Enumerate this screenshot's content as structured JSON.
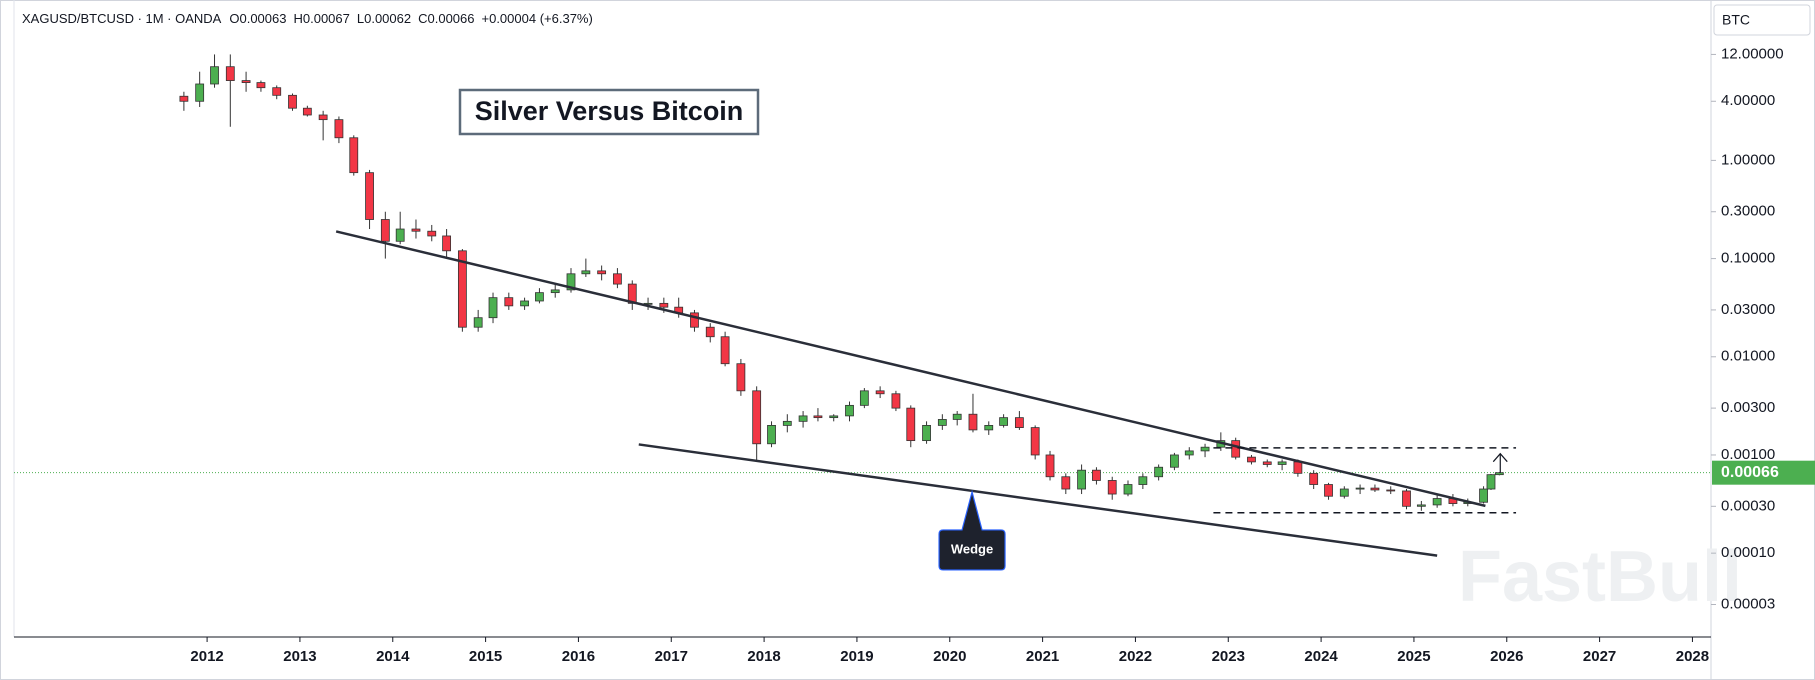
{
  "chart_data": {
    "type": "candlestick",
    "header": {
      "symbol": "XAGUSD/BTCUSD · 1M · OANDA",
      "o_label": "O",
      "open": 0.00063,
      "h_label": "H",
      "high": 0.00067,
      "l_label": "L",
      "low": 0.00062,
      "c_label": "C",
      "close": 0.00066,
      "change": "+0.00004 (+6.37%)"
    },
    "title": "Silver Versus Bitcoin",
    "currency": "BTC",
    "watermark": "FastBull",
    "log_scale": true,
    "up_color": "#4caf50",
    "down_color": "#f23645",
    "last_price": 0.00066,
    "last_price_color": "#4caf50",
    "xlim": [
      2009.92,
      2028.2
    ],
    "xticks": [
      2012,
      2013,
      2014,
      2015,
      2016,
      2017,
      2018,
      2019,
      2020,
      2021,
      2022,
      2023,
      2024,
      2025,
      2026,
      2027,
      2028
    ],
    "ylim": [
      1.4e-05,
      43
    ],
    "yticks": [
      {
        "value": 12,
        "label": "12.00000"
      },
      {
        "value": 4,
        "label": "4.00000"
      },
      {
        "value": 1,
        "label": "1.00000"
      },
      {
        "value": 0.3,
        "label": "0.30000"
      },
      {
        "value": 0.1,
        "label": "0.10000"
      },
      {
        "value": 0.03,
        "label": "0.03000"
      },
      {
        "value": 0.01,
        "label": "0.01000"
      },
      {
        "value": 0.003,
        "label": "0.00300"
      },
      {
        "value": 0.001,
        "label": "0.00100"
      },
      {
        "value": 0.0003,
        "label": "0.00030"
      },
      {
        "value": 0.0001,
        "label": "0.00010"
      },
      {
        "value": 3e-05,
        "label": "0.00003"
      }
    ],
    "candles": [
      {
        "x": 2011.75,
        "open": 4.5,
        "high": 5,
        "low": 3.2,
        "close": 4
      },
      {
        "x": 2011.92,
        "open": 4,
        "high": 8,
        "low": 3.5,
        "close": 6
      },
      {
        "x": 2012.08,
        "open": 6,
        "high": 12,
        "low": 5.5,
        "close": 9
      },
      {
        "x": 2012.25,
        "open": 9,
        "high": 12,
        "low": 2.2,
        "close": 6.5
      },
      {
        "x": 2012.42,
        "open": 6.5,
        "high": 8,
        "low": 5,
        "close": 6.2
      },
      {
        "x": 2012.58,
        "open": 6.2,
        "high": 6.5,
        "low": 5,
        "close": 5.5
      },
      {
        "x": 2012.75,
        "open": 5.5,
        "high": 5.8,
        "low": 4.2,
        "close": 4.6
      },
      {
        "x": 2012.92,
        "open": 4.6,
        "high": 4.8,
        "low": 3.2,
        "close": 3.4
      },
      {
        "x": 2013.08,
        "open": 3.4,
        "high": 3.6,
        "low": 2.8,
        "close": 2.9
      },
      {
        "x": 2013.25,
        "open": 2.9,
        "high": 3.2,
        "low": 1.6,
        "close": 2.6
      },
      {
        "x": 2013.42,
        "open": 2.6,
        "high": 2.8,
        "low": 1.5,
        "close": 1.7
      },
      {
        "x": 2013.58,
        "open": 1.7,
        "high": 1.8,
        "low": 0.7,
        "close": 0.75
      },
      {
        "x": 2013.75,
        "open": 0.75,
        "high": 0.8,
        "low": 0.2,
        "close": 0.25
      },
      {
        "x": 2013.92,
        "open": 0.25,
        "high": 0.3,
        "low": 0.1,
        "close": 0.15
      },
      {
        "x": 2014.08,
        "open": 0.15,
        "high": 0.3,
        "low": 0.14,
        "close": 0.2
      },
      {
        "x": 2014.25,
        "open": 0.2,
        "high": 0.25,
        "low": 0.16,
        "close": 0.19
      },
      {
        "x": 2014.42,
        "open": 0.19,
        "high": 0.22,
        "low": 0.15,
        "close": 0.17
      },
      {
        "x": 2014.58,
        "open": 0.17,
        "high": 0.2,
        "low": 0.1,
        "close": 0.12
      },
      {
        "x": 2014.75,
        "open": 0.12,
        "high": 0.125,
        "low": 0.018,
        "close": 0.02
      },
      {
        "x": 2014.92,
        "open": 0.02,
        "high": 0.03,
        "low": 0.018,
        "close": 0.025
      },
      {
        "x": 2015.08,
        "open": 0.025,
        "high": 0.045,
        "low": 0.022,
        "close": 0.04
      },
      {
        "x": 2015.25,
        "open": 0.04,
        "high": 0.045,
        "low": 0.03,
        "close": 0.033
      },
      {
        "x": 2015.42,
        "open": 0.033,
        "high": 0.04,
        "low": 0.03,
        "close": 0.037
      },
      {
        "x": 2015.58,
        "open": 0.037,
        "high": 0.05,
        "low": 0.035,
        "close": 0.045
      },
      {
        "x": 2015.75,
        "open": 0.045,
        "high": 0.055,
        "low": 0.04,
        "close": 0.048
      },
      {
        "x": 2015.92,
        "open": 0.048,
        "high": 0.08,
        "low": 0.045,
        "close": 0.07
      },
      {
        "x": 2016.08,
        "open": 0.07,
        "high": 0.1,
        "low": 0.065,
        "close": 0.075
      },
      {
        "x": 2016.25,
        "open": 0.075,
        "high": 0.085,
        "low": 0.06,
        "close": 0.07
      },
      {
        "x": 2016.42,
        "open": 0.07,
        "high": 0.08,
        "low": 0.05,
        "close": 0.055
      },
      {
        "x": 2016.58,
        "open": 0.055,
        "high": 0.06,
        "low": 0.03,
        "close": 0.035
      },
      {
        "x": 2016.75,
        "open": 0.035,
        "high": 0.04,
        "low": 0.03,
        "close": 0.035
      },
      {
        "x": 2016.92,
        "open": 0.035,
        "high": 0.04,
        "low": 0.028,
        "close": 0.032
      },
      {
        "x": 2017.08,
        "open": 0.032,
        "high": 0.04,
        "low": 0.025,
        "close": 0.028
      },
      {
        "x": 2017.25,
        "open": 0.028,
        "high": 0.03,
        "low": 0.018,
        "close": 0.02
      },
      {
        "x": 2017.42,
        "open": 0.02,
        "high": 0.022,
        "low": 0.014,
        "close": 0.016
      },
      {
        "x": 2017.58,
        "open": 0.016,
        "high": 0.018,
        "low": 0.008,
        "close": 0.0085
      },
      {
        "x": 2017.75,
        "open": 0.0085,
        "high": 0.0095,
        "low": 0.004,
        "close": 0.0045
      },
      {
        "x": 2017.92,
        "open": 0.0045,
        "high": 0.005,
        "low": 0.00085,
        "close": 0.0013
      },
      {
        "x": 2018.08,
        "open": 0.0013,
        "high": 0.0022,
        "low": 0.0012,
        "close": 0.002
      },
      {
        "x": 2018.25,
        "open": 0.002,
        "high": 0.0026,
        "low": 0.0017,
        "close": 0.0022
      },
      {
        "x": 2018.42,
        "open": 0.0022,
        "high": 0.0028,
        "low": 0.0019,
        "close": 0.0025
      },
      {
        "x": 2018.58,
        "open": 0.0025,
        "high": 0.003,
        "low": 0.0022,
        "close": 0.0024
      },
      {
        "x": 2018.75,
        "open": 0.0024,
        "high": 0.0026,
        "low": 0.0022,
        "close": 0.0025
      },
      {
        "x": 2018.92,
        "open": 0.0025,
        "high": 0.0035,
        "low": 0.0022,
        "close": 0.0032
      },
      {
        "x": 2019.08,
        "open": 0.0032,
        "high": 0.0048,
        "low": 0.003,
        "close": 0.0045
      },
      {
        "x": 2019.25,
        "open": 0.0045,
        "high": 0.005,
        "low": 0.0038,
        "close": 0.0042
      },
      {
        "x": 2019.42,
        "open": 0.0042,
        "high": 0.0045,
        "low": 0.0028,
        "close": 0.003
      },
      {
        "x": 2019.58,
        "open": 0.003,
        "high": 0.0032,
        "low": 0.0012,
        "close": 0.0014
      },
      {
        "x": 2019.75,
        "open": 0.0014,
        "high": 0.0022,
        "low": 0.0013,
        "close": 0.002
      },
      {
        "x": 2019.92,
        "open": 0.002,
        "high": 0.0026,
        "low": 0.0018,
        "close": 0.0023
      },
      {
        "x": 2020.08,
        "open": 0.0023,
        "high": 0.0028,
        "low": 0.002,
        "close": 0.0026
      },
      {
        "x": 2020.25,
        "open": 0.0026,
        "high": 0.0042,
        "low": 0.0017,
        "close": 0.0018
      },
      {
        "x": 2020.42,
        "open": 0.0018,
        "high": 0.0022,
        "low": 0.0016,
        "close": 0.002
      },
      {
        "x": 2020.58,
        "open": 0.002,
        "high": 0.0026,
        "low": 0.0019,
        "close": 0.0024
      },
      {
        "x": 2020.75,
        "open": 0.0024,
        "high": 0.0028,
        "low": 0.0018,
        "close": 0.0019
      },
      {
        "x": 2020.92,
        "open": 0.0019,
        "high": 0.002,
        "low": 0.0009,
        "close": 0.001
      },
      {
        "x": 2021.08,
        "open": 0.001,
        "high": 0.0011,
        "low": 0.00055,
        "close": 0.0006
      },
      {
        "x": 2021.25,
        "open": 0.0006,
        "high": 0.00065,
        "low": 0.0004,
        "close": 0.00045
      },
      {
        "x": 2021.42,
        "open": 0.00045,
        "high": 0.0008,
        "low": 0.0004,
        "close": 0.0007
      },
      {
        "x": 2021.58,
        "open": 0.0007,
        "high": 0.00075,
        "low": 0.0005,
        "close": 0.00055
      },
      {
        "x": 2021.75,
        "open": 0.00055,
        "high": 0.0006,
        "low": 0.00035,
        "close": 0.0004
      },
      {
        "x": 2021.92,
        "open": 0.0004,
        "high": 0.00055,
        "low": 0.00038,
        "close": 0.0005
      },
      {
        "x": 2022.08,
        "open": 0.0005,
        "high": 0.00065,
        "low": 0.00045,
        "close": 0.0006
      },
      {
        "x": 2022.25,
        "open": 0.0006,
        "high": 0.0008,
        "low": 0.00055,
        "close": 0.00075
      },
      {
        "x": 2022.42,
        "open": 0.00075,
        "high": 0.00105,
        "low": 0.0007,
        "close": 0.001
      },
      {
        "x": 2022.58,
        "open": 0.001,
        "high": 0.0012,
        "low": 0.0009,
        "close": 0.0011
      },
      {
        "x": 2022.75,
        "open": 0.0011,
        "high": 0.0013,
        "low": 0.00095,
        "close": 0.0012
      },
      {
        "x": 2022.92,
        "open": 0.0012,
        "high": 0.0017,
        "low": 0.0011,
        "close": 0.0014
      },
      {
        "x": 2023.08,
        "open": 0.0014,
        "high": 0.0015,
        "low": 0.0009,
        "close": 0.00095
      },
      {
        "x": 2023.25,
        "open": 0.00095,
        "high": 0.001,
        "low": 0.0008,
        "close": 0.00085
      },
      {
        "x": 2023.42,
        "open": 0.00085,
        "high": 0.0009,
        "low": 0.00075,
        "close": 0.0008
      },
      {
        "x": 2023.58,
        "open": 0.0008,
        "high": 0.0009,
        "low": 0.0007,
        "close": 0.00085
      },
      {
        "x": 2023.75,
        "open": 0.00085,
        "high": 0.0009,
        "low": 0.0006,
        "close": 0.00065
      },
      {
        "x": 2023.92,
        "open": 0.00065,
        "high": 0.0007,
        "low": 0.00045,
        "close": 0.0005
      },
      {
        "x": 2024.08,
        "open": 0.0005,
        "high": 0.00052,
        "low": 0.00035,
        "close": 0.00038
      },
      {
        "x": 2024.25,
        "open": 0.00038,
        "high": 0.00048,
        "low": 0.00036,
        "close": 0.00045
      },
      {
        "x": 2024.42,
        "open": 0.00045,
        "high": 0.0005,
        "low": 0.0004,
        "close": 0.00046
      },
      {
        "x": 2024.58,
        "open": 0.00046,
        "high": 0.0005,
        "low": 0.00042,
        "close": 0.00044
      },
      {
        "x": 2024.75,
        "open": 0.00044,
        "high": 0.00048,
        "low": 0.0004,
        "close": 0.00043
      },
      {
        "x": 2024.92,
        "open": 0.00043,
        "high": 0.00045,
        "low": 0.00028,
        "close": 0.0003
      },
      {
        "x": 2025.08,
        "open": 0.0003,
        "high": 0.00034,
        "low": 0.00027,
        "close": 0.00031
      },
      {
        "x": 2025.25,
        "open": 0.00031,
        "high": 0.0004,
        "low": 0.00029,
        "close": 0.00036
      },
      {
        "x": 2025.42,
        "open": 0.00036,
        "high": 0.0004,
        "low": 0.0003,
        "close": 0.00032
      },
      {
        "x": 2025.58,
        "open": 0.00032,
        "high": 0.00036,
        "low": 0.0003,
        "close": 0.00033
      },
      {
        "x": 2025.75,
        "open": 0.00033,
        "high": 0.00048,
        "low": 0.00032,
        "close": 0.00045
      },
      {
        "x": 2025.83,
        "open": 0.00045,
        "high": 0.00064,
        "low": 0.00044,
        "close": 0.00063
      },
      {
        "x": 2025.92,
        "open": 0.00063,
        "high": 0.00067,
        "low": 0.00062,
        "close": 0.00066
      }
    ],
    "trendlines": [
      {
        "x": [
          2013.39,
          2025.77
        ],
        "y": [
          0.189,
          0.000303
        ]
      },
      {
        "x": [
          2016.65,
          2025.25
        ],
        "y": [
          0.00128,
          9.44e-05
        ]
      }
    ],
    "dashed_lines": [
      {
        "x": [
          2022.84,
          2026.1
        ],
        "y": [
          0.00118,
          0.00118
        ]
      },
      {
        "x": [
          2022.84,
          2026.1
        ],
        "y": [
          0.000258,
          0.000258
        ]
      }
    ],
    "arrow": {
      "x": [
        2025.93,
        2025.93
      ],
      "y": [
        0.00066,
        0.00103
      ]
    },
    "callout": {
      "text": "Wedge",
      "x": 2020.24,
      "y": 0.00042
    }
  }
}
